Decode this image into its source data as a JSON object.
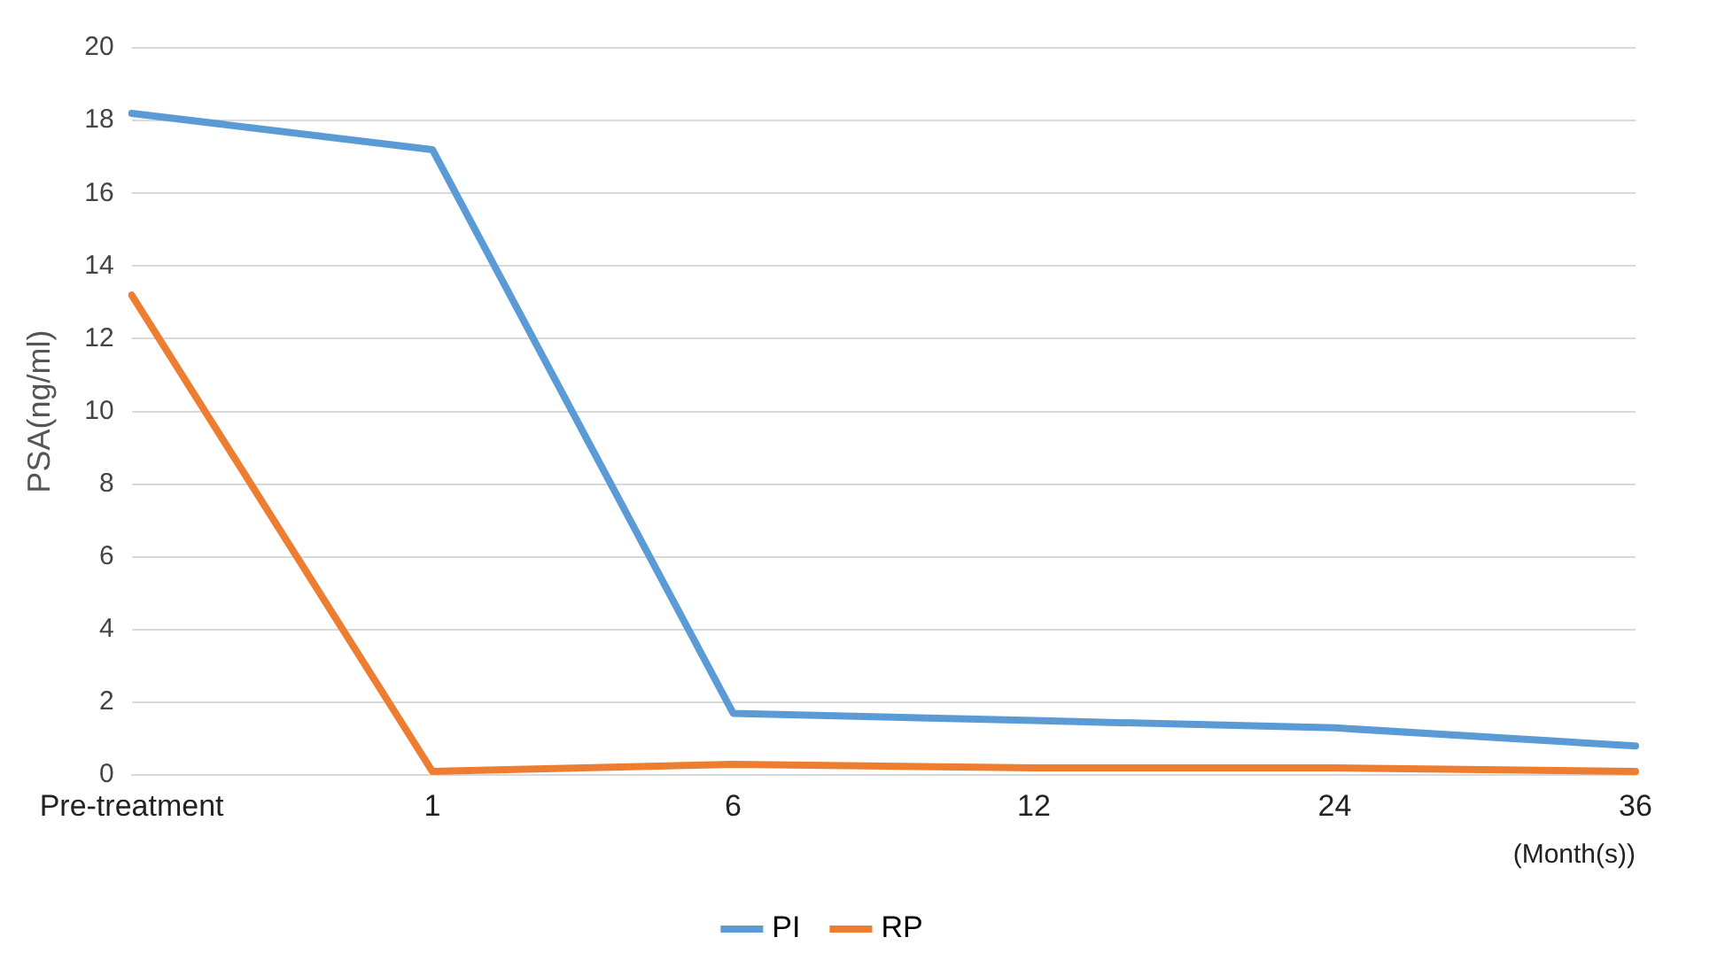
{
  "chart_data": {
    "type": "line",
    "xlabel": "(Month(s))",
    "ylabel": "PSA(ng/ml)",
    "categories": [
      "Pre-treatment",
      "1",
      "6",
      "12",
      "24",
      "36"
    ],
    "series": [
      {
        "name": "PI",
        "color": "#5b9bd5",
        "values": [
          18.2,
          17.2,
          1.7,
          1.5,
          1.3,
          0.8
        ]
      },
      {
        "name": "RP",
        "color": "#ed7d31",
        "values": [
          13.2,
          0.1,
          0.3,
          0.2,
          0.2,
          0.1
        ]
      }
    ],
    "ylim": [
      0,
      20
    ],
    "yticks": [
      0,
      2,
      4,
      6,
      8,
      10,
      12,
      14,
      16,
      18,
      20
    ],
    "grid": "y",
    "legend": "bottom",
    "marker": "none",
    "line_style": "solid"
  }
}
